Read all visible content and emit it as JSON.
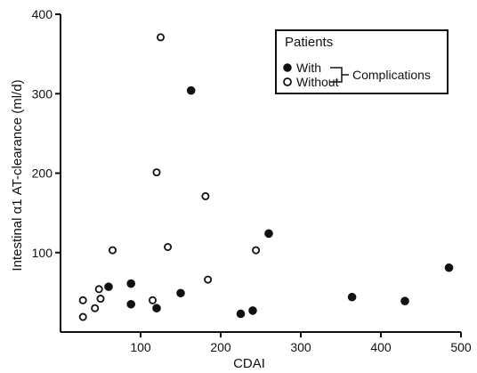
{
  "chart_data": {
    "type": "scatter",
    "xlabel": "CDAI",
    "ylabel": "Intestinal α1 AT-clearance (ml/d)",
    "xlim": [
      0,
      500
    ],
    "ylim": [
      0,
      400
    ],
    "x_ticks": [
      100,
      200,
      300,
      400,
      500
    ],
    "y_ticks": [
      100,
      200,
      300,
      400
    ],
    "grid": false,
    "legend_position": "top-right",
    "legend": {
      "title": "Patients",
      "bracket_label": "Complications"
    },
    "series": [
      {
        "name": "With",
        "marker": "filled-circle",
        "points": [
          {
            "x": 60,
            "y": 57
          },
          {
            "x": 88,
            "y": 61
          },
          {
            "x": 88,
            "y": 35
          },
          {
            "x": 120,
            "y": 30
          },
          {
            "x": 150,
            "y": 49
          },
          {
            "x": 163,
            "y": 304
          },
          {
            "x": 225,
            "y": 23
          },
          {
            "x": 240,
            "y": 27
          },
          {
            "x": 260,
            "y": 124
          },
          {
            "x": 364,
            "y": 44
          },
          {
            "x": 430,
            "y": 39
          },
          {
            "x": 485,
            "y": 81
          }
        ]
      },
      {
        "name": "Without",
        "marker": "open-circle",
        "points": [
          {
            "x": 28,
            "y": 40
          },
          {
            "x": 28,
            "y": 19
          },
          {
            "x": 43,
            "y": 30
          },
          {
            "x": 48,
            "y": 54
          },
          {
            "x": 50,
            "y": 42
          },
          {
            "x": 65,
            "y": 103
          },
          {
            "x": 115,
            "y": 40
          },
          {
            "x": 120,
            "y": 201
          },
          {
            "x": 125,
            "y": 371
          },
          {
            "x": 134,
            "y": 107
          },
          {
            "x": 181,
            "y": 171
          },
          {
            "x": 184,
            "y": 66
          },
          {
            "x": 244,
            "y": 103
          }
        ]
      }
    ]
  }
}
